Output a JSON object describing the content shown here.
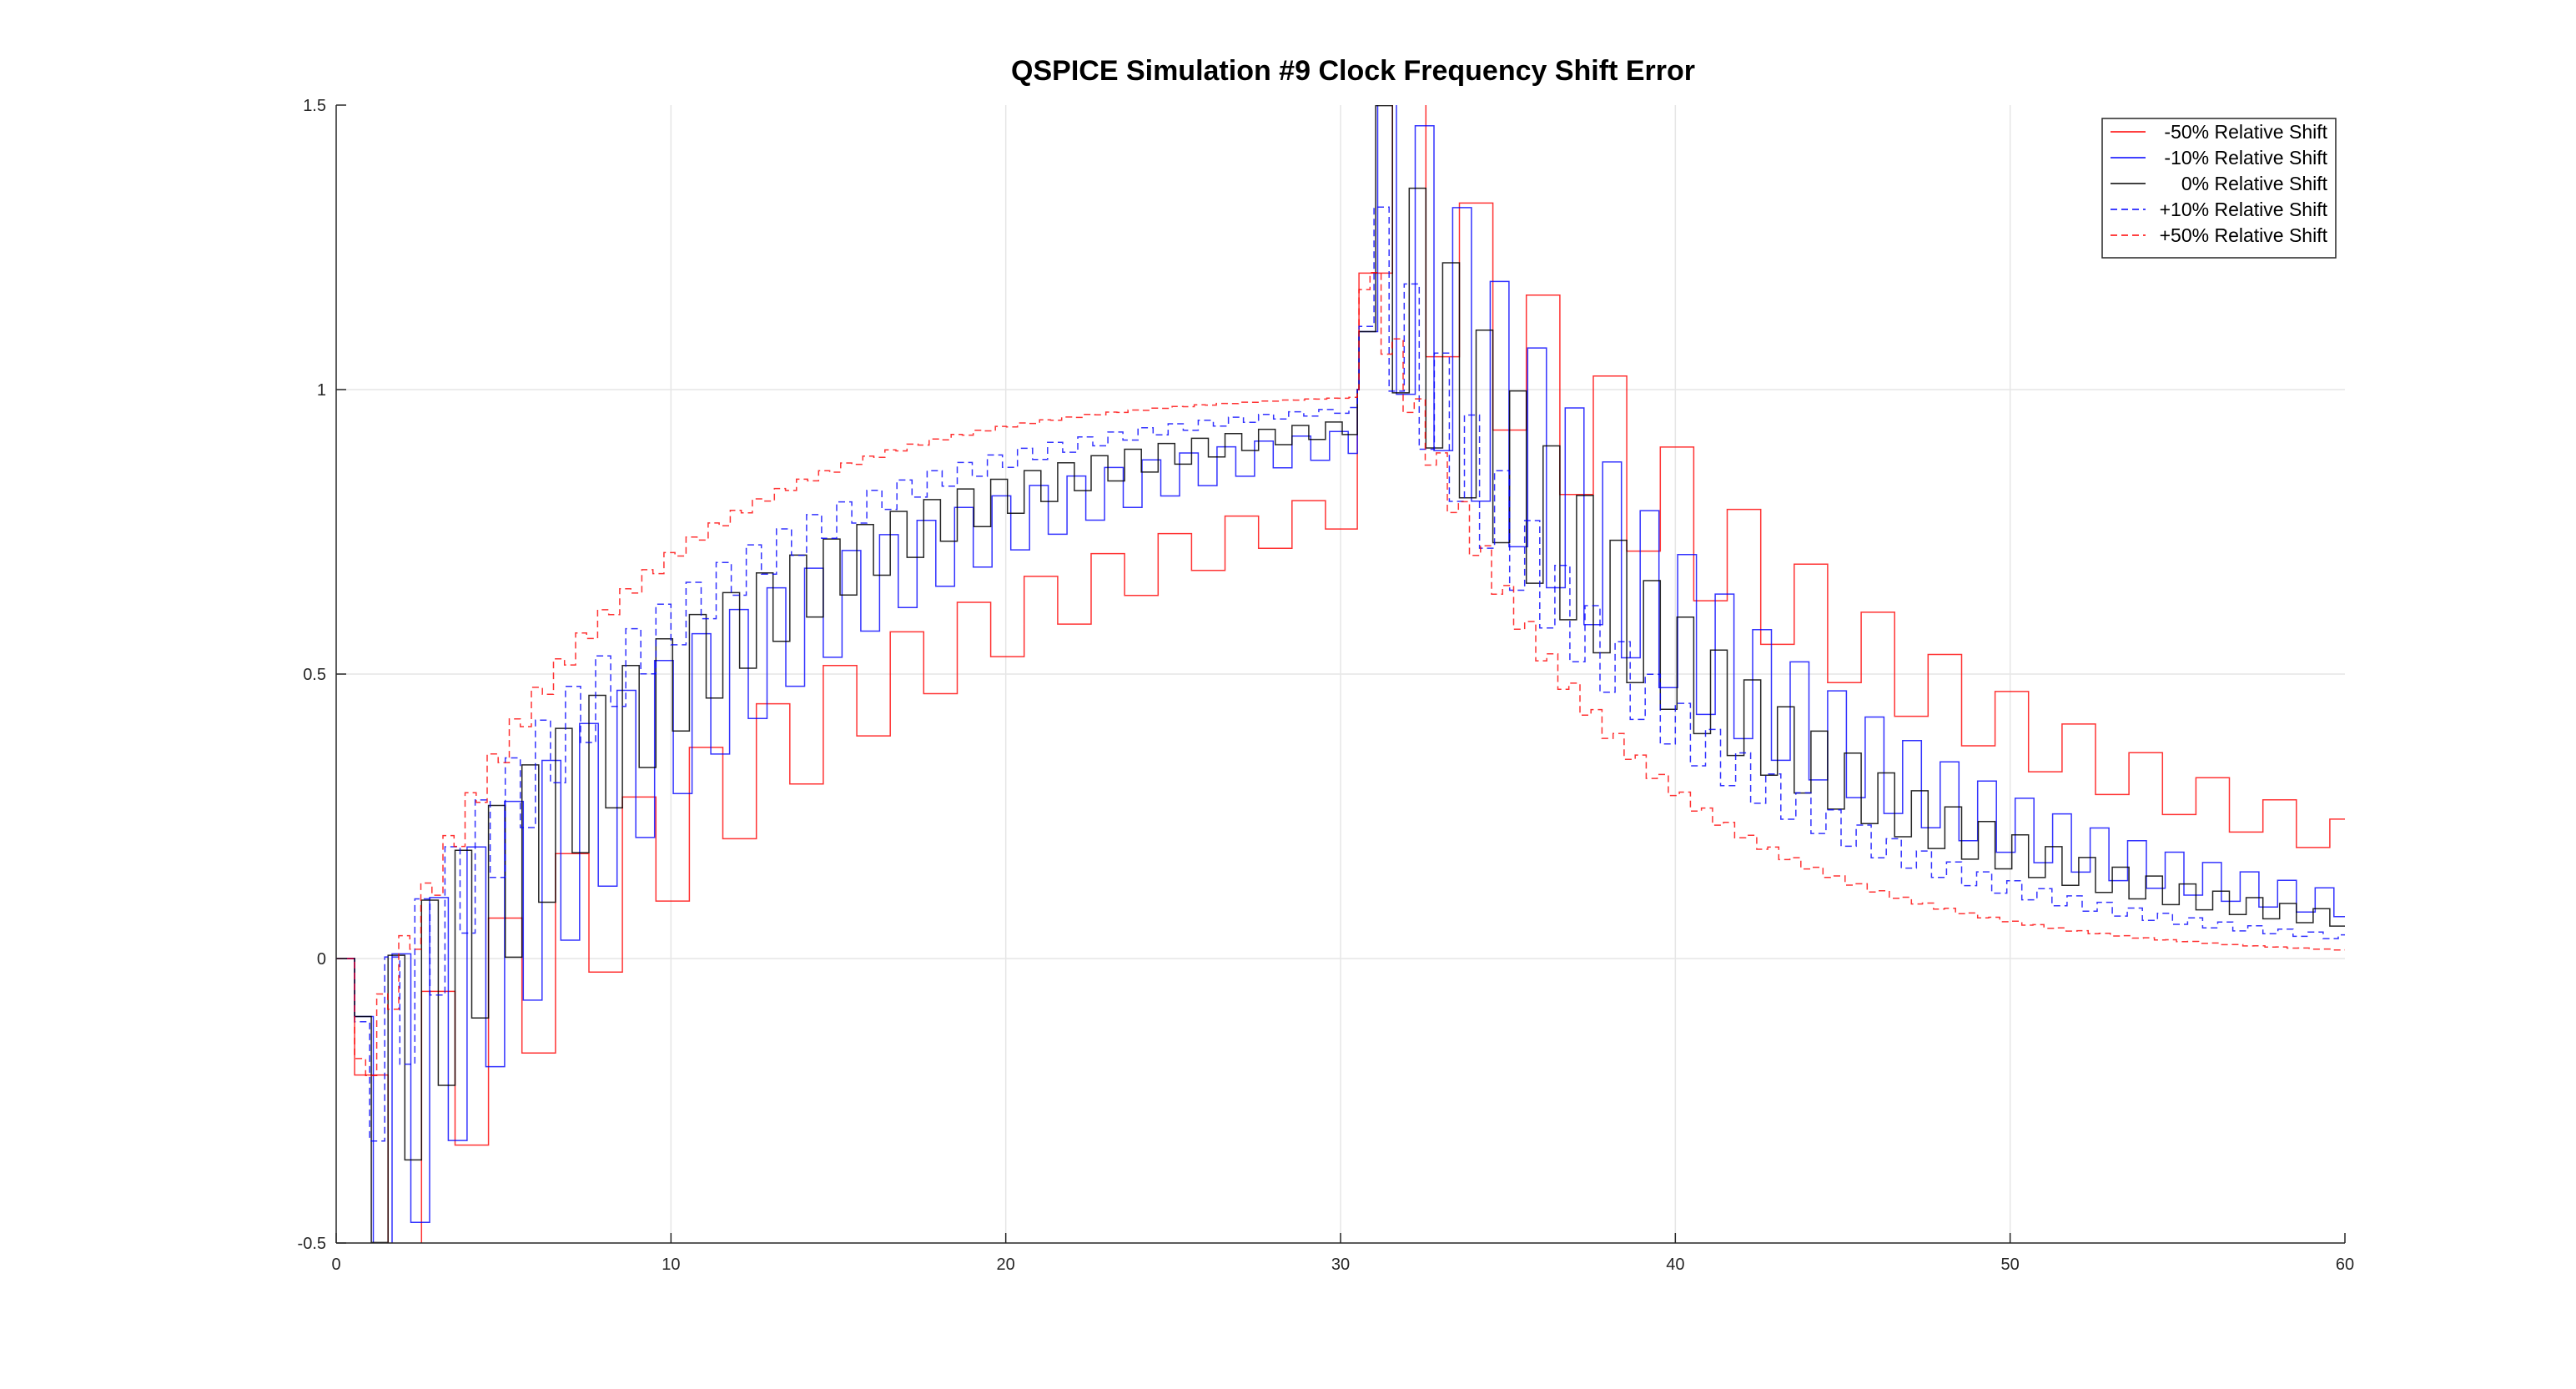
{
  "chart_data": {
    "type": "line",
    "title": "QSPICE Simulation #9 Clock Frequency Shift Error",
    "xlabel": "",
    "ylabel": "",
    "xlim": [
      0,
      60
    ],
    "ylim": [
      -0.5,
      1.5
    ],
    "xticks": [
      0,
      10,
      20,
      30,
      40,
      50,
      60
    ],
    "xtick_labels": [
      "0",
      "10",
      "20",
      "30",
      "40",
      "50",
      "60"
    ],
    "yticks": [
      -0.5,
      0,
      0.5,
      1,
      1.5
    ],
    "ytick_labels": [
      "-0.5",
      "0",
      "0.5",
      "1",
      "1.5"
    ],
    "grid": true,
    "legend_position": "top-right",
    "step_on": 0.5,
    "step_off": 30.5,
    "series": [
      {
        "name": "-50% Relative Shift",
        "color": "#ff0000",
        "dash": "solid",
        "period": 1.0,
        "overshoot": 0.47,
        "decay": 0.065,
        "smooth": 0.0,
        "delay": 0.6
      },
      {
        "name": "-10% Relative Shift",
        "color": "#0000ff",
        "dash": "solid",
        "period": 0.56,
        "overshoot": 0.32,
        "decay": 0.09,
        "smooth": 0.16,
        "delay": 0.5
      },
      {
        "name": "0% Relative Shift",
        "color": "#000000",
        "dash": "solid",
        "period": 0.5,
        "overshoot": 0.25,
        "decay": 0.1,
        "smooth": 0.16,
        "delay": 0.45
      },
      {
        "name": "+10% Relative Shift",
        "color": "#0000ff",
        "dash": "dashed",
        "period": 0.45,
        "overshoot": 0.16,
        "decay": 0.12,
        "smooth": 0.17,
        "delay": 0.45
      },
      {
        "name": "+50% Relative Shift",
        "color": "#ff0000",
        "dash": "dashed",
        "period": 0.33,
        "overshoot": 0.12,
        "decay": 0.16,
        "smooth": 0.19,
        "delay": 0.4
      }
    ]
  }
}
